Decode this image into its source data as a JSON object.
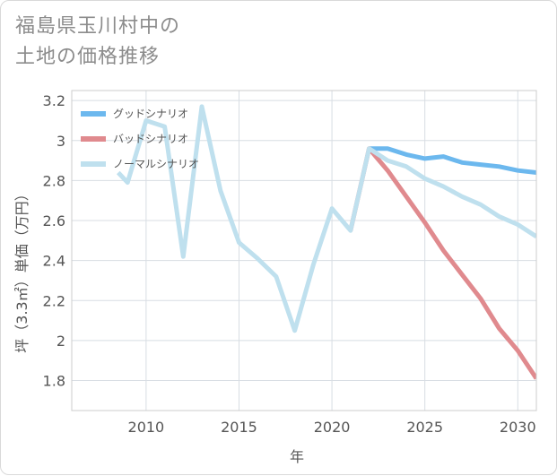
{
  "title_lines": [
    "福島県玉川村中の",
    "土地の価格推移"
  ],
  "chart_data": {
    "type": "line",
    "title": "福島県玉川村中の土地の価格推移",
    "xlabel": "年",
    "ylabel": "坪（3.3㎡）単価（万円）",
    "xlim": [
      2006,
      2031
    ],
    "ylim": [
      1.65,
      3.25
    ],
    "x_ticks": [
      2010,
      2015,
      2020,
      2025,
      2030
    ],
    "y_ticks": [
      1.8,
      2,
      2.2,
      2.4,
      2.6,
      2.8,
      3,
      3.2
    ],
    "y_tick_labels": [
      "1.8",
      "2",
      "2.2",
      "2.4",
      "2.6",
      "2.8",
      "3",
      "3.2"
    ],
    "grid": true,
    "legend_position": "top-left",
    "series": [
      {
        "name": "グッドシナリオ",
        "color": "#6cb8ee",
        "x": [
          2022,
          2023,
          2024,
          2025,
          2026,
          2027,
          2028,
          2029,
          2030,
          2031
        ],
        "y": [
          2.96,
          2.96,
          2.93,
          2.91,
          2.92,
          2.89,
          2.88,
          2.87,
          2.85,
          2.84
        ]
      },
      {
        "name": "バッドシナリオ",
        "color": "#e08a8e",
        "x": [
          2021,
          2022,
          2023,
          2024,
          2025,
          2026,
          2027,
          2028,
          2029,
          2030,
          2031
        ],
        "y": [
          2.55,
          2.96,
          2.85,
          2.72,
          2.59,
          2.45,
          2.33,
          2.21,
          2.06,
          1.95,
          1.81
        ]
      },
      {
        "name": "ノーマルシナリオ",
        "color": "#bfe0ee",
        "x": [
          2008.5,
          2009,
          2010,
          2011,
          2012,
          2013,
          2014,
          2015,
          2016,
          2017,
          2018,
          2019,
          2020,
          2021,
          2022,
          2023,
          2024,
          2025,
          2026,
          2027,
          2028,
          2029,
          2030,
          2031
        ],
        "y": [
          2.84,
          2.79,
          3.1,
          3.07,
          2.42,
          3.17,
          2.75,
          2.49,
          2.41,
          2.32,
          2.05,
          2.38,
          2.66,
          2.55,
          2.96,
          2.9,
          2.87,
          2.81,
          2.77,
          2.72,
          2.68,
          2.62,
          2.58,
          2.52
        ]
      }
    ]
  }
}
